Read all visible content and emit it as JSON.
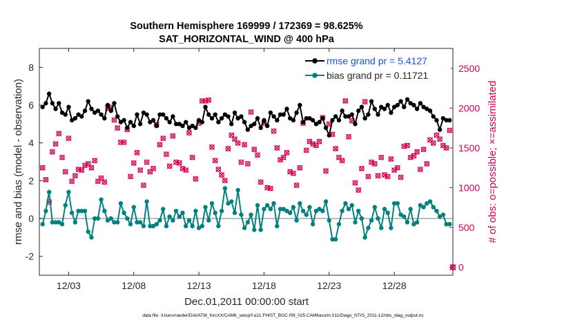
{
  "colors": {
    "rmse": "#000000",
    "bias": "#00807f",
    "obs": "#d6004f",
    "zero_line": "#bdbdbd",
    "rmse_text": "#1a4fe0"
  },
  "chart_data": {
    "type": "line",
    "title_line1": "Southern Hemisphere 169999 / 172369 = 98.625%",
    "title_line2": "SAT_HORIZONTAL_WIND @ 400 hPa",
    "xlabel": "Dec.01,2011 00:00:00 start",
    "ylabel": "rmse and bias (model - observation)",
    "y2label": "# of obs: o=possible; ×=assimilated",
    "footnote": "data file: /Users/raeder/DAI/ATM_forcXX/CAM6_setup/f.e21.FHIST_BGC.f09_025.CAM6assim.011/Diags_NTrS_2011-12/obs_diag_output.nc",
    "xlim": [
      0.75,
      32.5
    ],
    "ylim": [
      -3,
      9
    ],
    "y2lim": [
      -100,
      2750
    ],
    "xticks": [
      3,
      8,
      13,
      18,
      23,
      28
    ],
    "xticklabels": [
      "12/03",
      "12/08",
      "12/13",
      "12/18",
      "12/23",
      "12/28"
    ],
    "yticks": [
      -2,
      0,
      2,
      4,
      6,
      8
    ],
    "yticklabels": [
      "-2",
      "0",
      "2",
      "4",
      "6",
      "8"
    ],
    "y2ticks": [
      0,
      500,
      1000,
      1500,
      2000,
      2500
    ],
    "y2ticklabels": [
      "0",
      "500",
      "1000",
      "1500",
      "2000",
      "2500"
    ],
    "legend": [
      {
        "name": "rmse",
        "label": "rmse grand pr = 5.4127"
      },
      {
        "name": "bias",
        "label": "bias grand pr = 0.11721"
      }
    ],
    "zero_line_y": 0,
    "series": [
      {
        "name": "rmse",
        "x": [
          1.0,
          1.25,
          1.5,
          1.75,
          2.0,
          2.25,
          2.5,
          2.75,
          3.0,
          3.25,
          3.5,
          3.75,
          4.0,
          4.25,
          4.5,
          4.75,
          5.0,
          5.25,
          5.5,
          5.75,
          6.0,
          6.25,
          6.5,
          6.75,
          7.0,
          7.25,
          7.5,
          7.75,
          8.0,
          8.25,
          8.5,
          8.75,
          9.0,
          9.25,
          9.5,
          9.75,
          10.0,
          10.25,
          10.5,
          10.75,
          11.0,
          11.25,
          11.5,
          11.75,
          12.0,
          12.25,
          12.5,
          12.75,
          13.0,
          13.25,
          13.5,
          13.75,
          14.0,
          14.25,
          14.5,
          14.75,
          15.0,
          15.25,
          15.5,
          15.75,
          16.0,
          16.25,
          16.5,
          16.75,
          17.0,
          17.25,
          17.5,
          17.75,
          18.0,
          18.25,
          18.5,
          18.75,
          19.0,
          19.25,
          19.5,
          19.75,
          20.0,
          20.25,
          20.5,
          20.75,
          21.0,
          21.25,
          21.5,
          21.75,
          22.0,
          22.25,
          22.5,
          22.75,
          23.0,
          23.25,
          23.5,
          23.75,
          24.0,
          24.25,
          24.5,
          24.75,
          25.0,
          25.25,
          25.5,
          25.75,
          26.0,
          26.25,
          26.5,
          26.75,
          27.0,
          27.25,
          27.5,
          27.75,
          28.0,
          28.25,
          28.5,
          28.75,
          29.0,
          29.25,
          29.5,
          29.75,
          30.0,
          30.25,
          30.5,
          30.75,
          31.0,
          31.25,
          31.5,
          31.75,
          32.0,
          32.25
        ],
        "values": [
          5.9,
          6.1,
          6.6,
          6.1,
          5.8,
          6.1,
          5.6,
          5.5,
          5.9,
          5.2,
          5.3,
          5.5,
          5.4,
          5.7,
          6.2,
          5.8,
          5.6,
          5.7,
          5.5,
          5.3,
          6.0,
          5.7,
          6.1,
          5.4,
          5.1,
          5.2,
          4.8,
          5.1,
          4.9,
          5.5,
          5.0,
          5.6,
          5.5,
          5.1,
          5.2,
          4.9,
          5.5,
          5.5,
          5.3,
          5.1,
          5.4,
          5.0,
          5.0,
          4.9,
          5.1,
          4.8,
          4.9,
          4.8,
          5.2,
          5.1,
          5.9,
          5.5,
          5.3,
          5.5,
          5.1,
          5.3,
          5.5,
          5.4,
          5.0,
          5.6,
          5.3,
          5.4,
          5.1,
          4.7,
          4.9,
          5.0,
          5.3,
          4.8,
          5.2,
          4.9,
          5.6,
          5.4,
          5.2,
          5.5,
          5.5,
          5.8,
          5.3,
          5.2,
          5.6,
          6.0,
          5.1,
          5.3,
          5.3,
          5.2,
          5.0,
          5.1,
          5.3,
          4.8,
          4.4,
          5.2,
          5.4,
          5.2,
          5.7,
          5.4,
          5.4,
          5.5,
          5.0,
          5.7,
          5.9,
          5.3,
          5.5,
          6.2,
          5.8,
          5.5,
          5.9,
          5.8,
          6.0,
          5.6,
          5.9,
          6.0,
          6.2,
          5.9,
          6.3,
          6.1,
          6.0,
          5.8,
          6.1,
          5.9,
          5.8,
          5.7,
          5.4,
          5.2,
          4.7,
          5.3,
          5.2,
          5.2
        ]
      },
      {
        "name": "bias",
        "x": [
          1.0,
          1.25,
          1.5,
          1.75,
          2.0,
          2.25,
          2.5,
          2.75,
          3.0,
          3.25,
          3.5,
          3.75,
          4.0,
          4.25,
          4.5,
          4.75,
          5.0,
          5.25,
          5.5,
          5.75,
          6.0,
          6.25,
          6.5,
          6.75,
          7.0,
          7.25,
          7.5,
          7.75,
          8.0,
          8.25,
          8.5,
          8.75,
          9.0,
          9.25,
          9.5,
          9.75,
          10.0,
          10.25,
          10.5,
          10.75,
          11.0,
          11.25,
          11.5,
          11.75,
          12.0,
          12.25,
          12.5,
          12.75,
          13.0,
          13.25,
          13.5,
          13.75,
          14.0,
          14.25,
          14.5,
          14.75,
          15.0,
          15.25,
          15.5,
          15.75,
          16.0,
          16.25,
          16.5,
          16.75,
          17.0,
          17.25,
          17.5,
          17.75,
          18.0,
          18.25,
          18.5,
          18.75,
          19.0,
          19.25,
          19.5,
          19.75,
          20.0,
          20.25,
          20.5,
          20.75,
          21.0,
          21.25,
          21.5,
          21.75,
          22.0,
          22.25,
          22.5,
          22.75,
          23.0,
          23.25,
          23.5,
          23.75,
          24.0,
          24.25,
          24.5,
          24.75,
          25.0,
          25.25,
          25.5,
          25.75,
          26.0,
          26.25,
          26.5,
          26.75,
          27.0,
          27.25,
          27.5,
          27.75,
          28.0,
          28.25,
          28.5,
          28.75,
          29.0,
          29.25,
          29.5,
          29.75,
          30.0,
          30.25,
          30.5,
          30.75,
          31.0,
          31.25,
          31.5,
          31.75,
          32.0,
          32.25
        ],
        "values": [
          -0.3,
          0.4,
          1.4,
          -0.2,
          -0.2,
          -0.2,
          -0.3,
          0.7,
          1.4,
          0.3,
          -0.2,
          0.4,
          0.4,
          0.4,
          -0.7,
          -1.0,
          0.0,
          0.0,
          1.0,
          0.4,
          -0.1,
          0.0,
          -0.2,
          -0.2,
          0.8,
          0.3,
          0.0,
          -0.3,
          0.6,
          -0.2,
          -0.2,
          -0.4,
          0.9,
          -0.4,
          -0.4,
          -0.3,
          -0.1,
          0.5,
          -0.4,
          0.1,
          -0.1,
          0.4,
          0.1,
          0.3,
          -0.4,
          -0.1,
          -0.4,
          0.4,
          -0.5,
          -0.4,
          0.6,
          -0.1,
          0.8,
          0.3,
          -0.4,
          0.4,
          1.6,
          0.8,
          0.9,
          0.3,
          1.5,
          0.2,
          -0.5,
          -0.2,
          0.2,
          -0.6,
          0.7,
          -0.6,
          0.5,
          0.7,
          0.5,
          0.8,
          -0.4,
          0.5,
          0.5,
          0.4,
          0.3,
          0.6,
          -0.1,
          0.8,
          0.4,
          0.2,
          0.6,
          -0.3,
          0.4,
          0.5,
          0.4,
          0.9,
          -0.1,
          -1.1,
          -1.1,
          -0.3,
          0.4,
          0.8,
          0.5,
          0.7,
          -0.2,
          0.4,
          0.0,
          -1.0,
          -0.5,
          -0.1,
          0.6,
          0.0,
          -0.5,
          0.5,
          0.3,
          -0.5,
          0.8,
          0.8,
          0.2,
          0.1,
          -0.2,
          0.5,
          -0.3,
          -0.2,
          0.7,
          0.6,
          0.8,
          0.9,
          0.6,
          0.4,
          0.1,
          0.2,
          -0.3,
          -0.3
        ]
      },
      {
        "name": "obs_possible",
        "x": [
          1.0,
          1.25,
          1.5,
          1.75,
          2.0,
          2.25,
          2.5,
          2.75,
          3.0,
          3.25,
          3.5,
          3.75,
          4.0,
          4.25,
          4.5,
          4.75,
          5.0,
          5.25,
          5.5,
          5.75,
          6.0,
          6.25,
          6.5,
          6.75,
          7.0,
          7.25,
          7.5,
          7.75,
          8.0,
          8.25,
          8.5,
          8.75,
          9.0,
          9.25,
          9.5,
          9.75,
          10.0,
          10.25,
          10.5,
          10.75,
          11.0,
          11.25,
          11.5,
          11.75,
          12.0,
          12.25,
          12.5,
          12.75,
          13.0,
          13.25,
          13.5,
          13.75,
          14.0,
          14.25,
          14.5,
          14.75,
          15.0,
          15.25,
          15.5,
          15.75,
          16.0,
          16.25,
          16.5,
          16.75,
          17.0,
          17.25,
          17.5,
          17.75,
          18.0,
          18.25,
          18.5,
          18.75,
          19.0,
          19.25,
          19.5,
          19.75,
          20.0,
          20.25,
          20.5,
          20.75,
          21.0,
          21.25,
          21.5,
          21.75,
          22.0,
          22.25,
          22.5,
          22.75,
          23.0,
          23.25,
          23.5,
          23.75,
          24.0,
          24.25,
          24.5,
          24.75,
          25.0,
          25.25,
          25.5,
          25.75,
          26.0,
          26.25,
          26.5,
          26.75,
          27.0,
          27.25,
          27.5,
          27.75,
          28.0,
          28.25,
          28.5,
          28.75,
          29.0,
          29.25,
          29.5,
          29.75,
          30.0,
          30.25,
          30.5,
          30.75,
          31.0,
          31.25,
          31.5,
          31.75,
          32.0,
          32.25
        ],
        "values": [
          1250,
          1100,
          820,
          1450,
          1550,
          1680,
          1380,
          1200,
          1620,
          1080,
          1150,
          1230,
          1220,
          1280,
          1300,
          1250,
          1340,
          1080,
          1120,
          1070,
          2000,
          2010,
          1850,
          1750,
          1570,
          1570,
          1730,
          1140,
          1310,
          1440,
          1220,
          1030,
          1320,
          1200,
          1240,
          1790,
          1540,
          1620,
          1420,
          1270,
          1650,
          1320,
          1310,
          1240,
          1220,
          1690,
          1380,
          1110,
          1810,
          2090,
          2090,
          2100,
          1510,
          1340,
          1230,
          1160,
          1090,
          1490,
          1660,
          1610,
          1560,
          1320,
          1540,
          1300,
          1950,
          1480,
          1410,
          1070,
          1810,
          1000,
          990,
          1710,
          1500,
          1350,
          1380,
          1440,
          1200,
          1180,
          1030,
          1250,
          1810,
          1470,
          1580,
          1550,
          1530,
          1580,
          1880,
          1210,
          1800,
          1670,
          1490,
          1380,
          1340,
          2090,
          1640,
          1840,
          1060,
          970,
          1240,
          2080,
          1140,
          1320,
          1300,
          1150,
          1380,
          1160,
          1140,
          1360,
          1220,
          1250,
          1130,
          1520,
          1530,
          1380,
          1400,
          1450,
          1230,
          1480,
          1300,
          1600,
          1560,
          1660,
          1610,
          1530,
          1500,
          1720
        ]
      }
    ]
  }
}
